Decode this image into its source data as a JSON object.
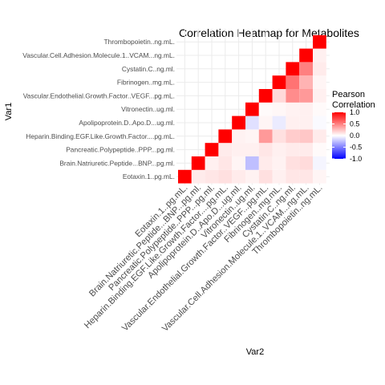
{
  "chart_data": {
    "type": "heatmap",
    "title": "Correlation Heatmap for Metabolites",
    "xlabel": "Var2",
    "ylabel": "Var1",
    "variables": [
      "Eotaxin.1..pg.mL.",
      "Brain.Natriuretic.Peptide...BNP...pg.ml.",
      "Pancreatic.Polypeptide..PPP...pg.ml.",
      "Heparin.Binding.EGF.Like.Growth.Factor....pg.mL.",
      "Apolipoprotein.D..Apo.D...ug.ml.",
      "Vitronectin..ug.ml.",
      "Vascular.Endothelial.Growth.Factor..VEGF...pg.mL.",
      "Fibrinogen..mg.mL.",
      "Cystatin.C..ng.ml.",
      "Vascular.Cell.Adhesion.Molecule.1..VCAM...ng.mL.",
      "Thrombopoietin..ng.mL."
    ],
    "matrix": [
      [
        1.0
      ],
      [
        0.08,
        1.0
      ],
      [
        0.1,
        0.06,
        1.0
      ],
      [
        0.12,
        0.1,
        0.08,
        1.0
      ],
      [
        0.08,
        0.04,
        0.06,
        0.05,
        1.0
      ],
      [
        0.05,
        -0.25,
        0.06,
        0.04,
        -0.12,
        1.0
      ],
      [
        0.12,
        0.08,
        0.1,
        0.4,
        0.04,
        0.02,
        1.0
      ],
      [
        0.06,
        0.05,
        0.06,
        0.12,
        -0.08,
        0.03,
        0.15,
        1.0
      ],
      [
        0.1,
        0.12,
        0.08,
        0.2,
        0.06,
        0.05,
        0.45,
        0.55,
        1.0
      ],
      [
        0.1,
        0.14,
        0.08,
        0.22,
        0.06,
        0.06,
        0.4,
        0.3,
        0.5,
        1.0
      ],
      [
        0.04,
        -0.04,
        0.02,
        0.08,
        -0.02,
        0.02,
        0.06,
        0.04,
        0.08,
        0.06,
        1.0
      ]
    ],
    "legend": {
      "title_lines": [
        "Pearson",
        "Correlation"
      ],
      "ticks": [
        1.0,
        0.5,
        0.0,
        -0.5,
        -1.0
      ],
      "tick_labels": [
        "1.0",
        "0.5",
        "0.0",
        "-0.5",
        "-1.0"
      ],
      "placement": "right"
    },
    "color_scale": {
      "low": "#0000ff",
      "mid": "#ffffff",
      "high": "#ff0000",
      "limits": [
        -1,
        1
      ]
    },
    "grid": true
  }
}
